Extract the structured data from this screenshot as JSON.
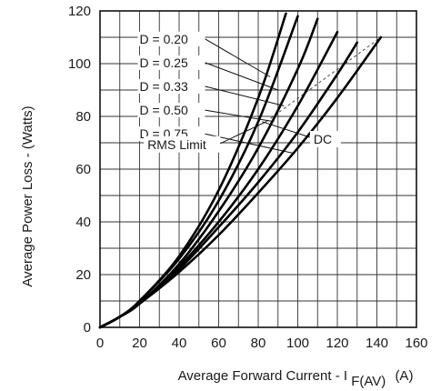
{
  "chart_data": {
    "type": "line",
    "title": "",
    "xlabel": "Average Forward Current - I",
    "xlabel_subscript": "F(AV)",
    "xlabel_unit": "(A)",
    "ylabel": "Average Power Loss - (Watts)",
    "xlim": [
      0,
      160
    ],
    "ylim": [
      0,
      120
    ],
    "xticks": [
      "0",
      "20",
      "40",
      "60",
      "80",
      "100",
      "120",
      "140",
      "160"
    ],
    "yticks": [
      "0",
      "20",
      "40",
      "60",
      "80",
      "100",
      "120"
    ],
    "grid": true,
    "series": [
      {
        "name": "D = 0.20",
        "x": [
          0,
          10,
          20,
          40,
          60,
          80,
          94
        ],
        "y": [
          0,
          4,
          10,
          27,
          52,
          87,
          119
        ]
      },
      {
        "name": "D = 0.25",
        "x": [
          0,
          10,
          20,
          40,
          60,
          80,
          100
        ],
        "y": [
          0,
          4,
          10,
          26,
          48,
          78,
          118
        ]
      },
      {
        "name": "D = 0.33",
        "x": [
          0,
          10,
          20,
          40,
          60,
          80,
          100,
          110
        ],
        "y": [
          0,
          4,
          9,
          24,
          44,
          68,
          98,
          117
        ]
      },
      {
        "name": "D = 0.50",
        "x": [
          0,
          10,
          20,
          40,
          60,
          80,
          100,
          120
        ],
        "y": [
          0,
          4,
          9,
          23,
          40,
          60,
          84,
          112
        ]
      },
      {
        "name": "D = 0.75",
        "x": [
          0,
          10,
          20,
          40,
          60,
          80,
          100,
          120,
          130
        ],
        "y": [
          0,
          4,
          9,
          22,
          38,
          55,
          74,
          96,
          108
        ]
      },
      {
        "name": "DC",
        "x": [
          0,
          10,
          20,
          40,
          60,
          80,
          100,
          120,
          142
        ],
        "y": [
          0,
          4,
          9,
          21,
          35,
          51,
          68,
          87,
          110
        ]
      }
    ],
    "rms_limit": {
      "label": "RMS Limit",
      "x": [
        84,
        142
      ],
      "y": [
        78,
        110
      ]
    },
    "annotations": {
      "labels": [
        "D = 0.20",
        "D = 0.25",
        "D = 0.33",
        "D = 0.50",
        "D = 0.75"
      ],
      "dc_label": "DC"
    }
  }
}
